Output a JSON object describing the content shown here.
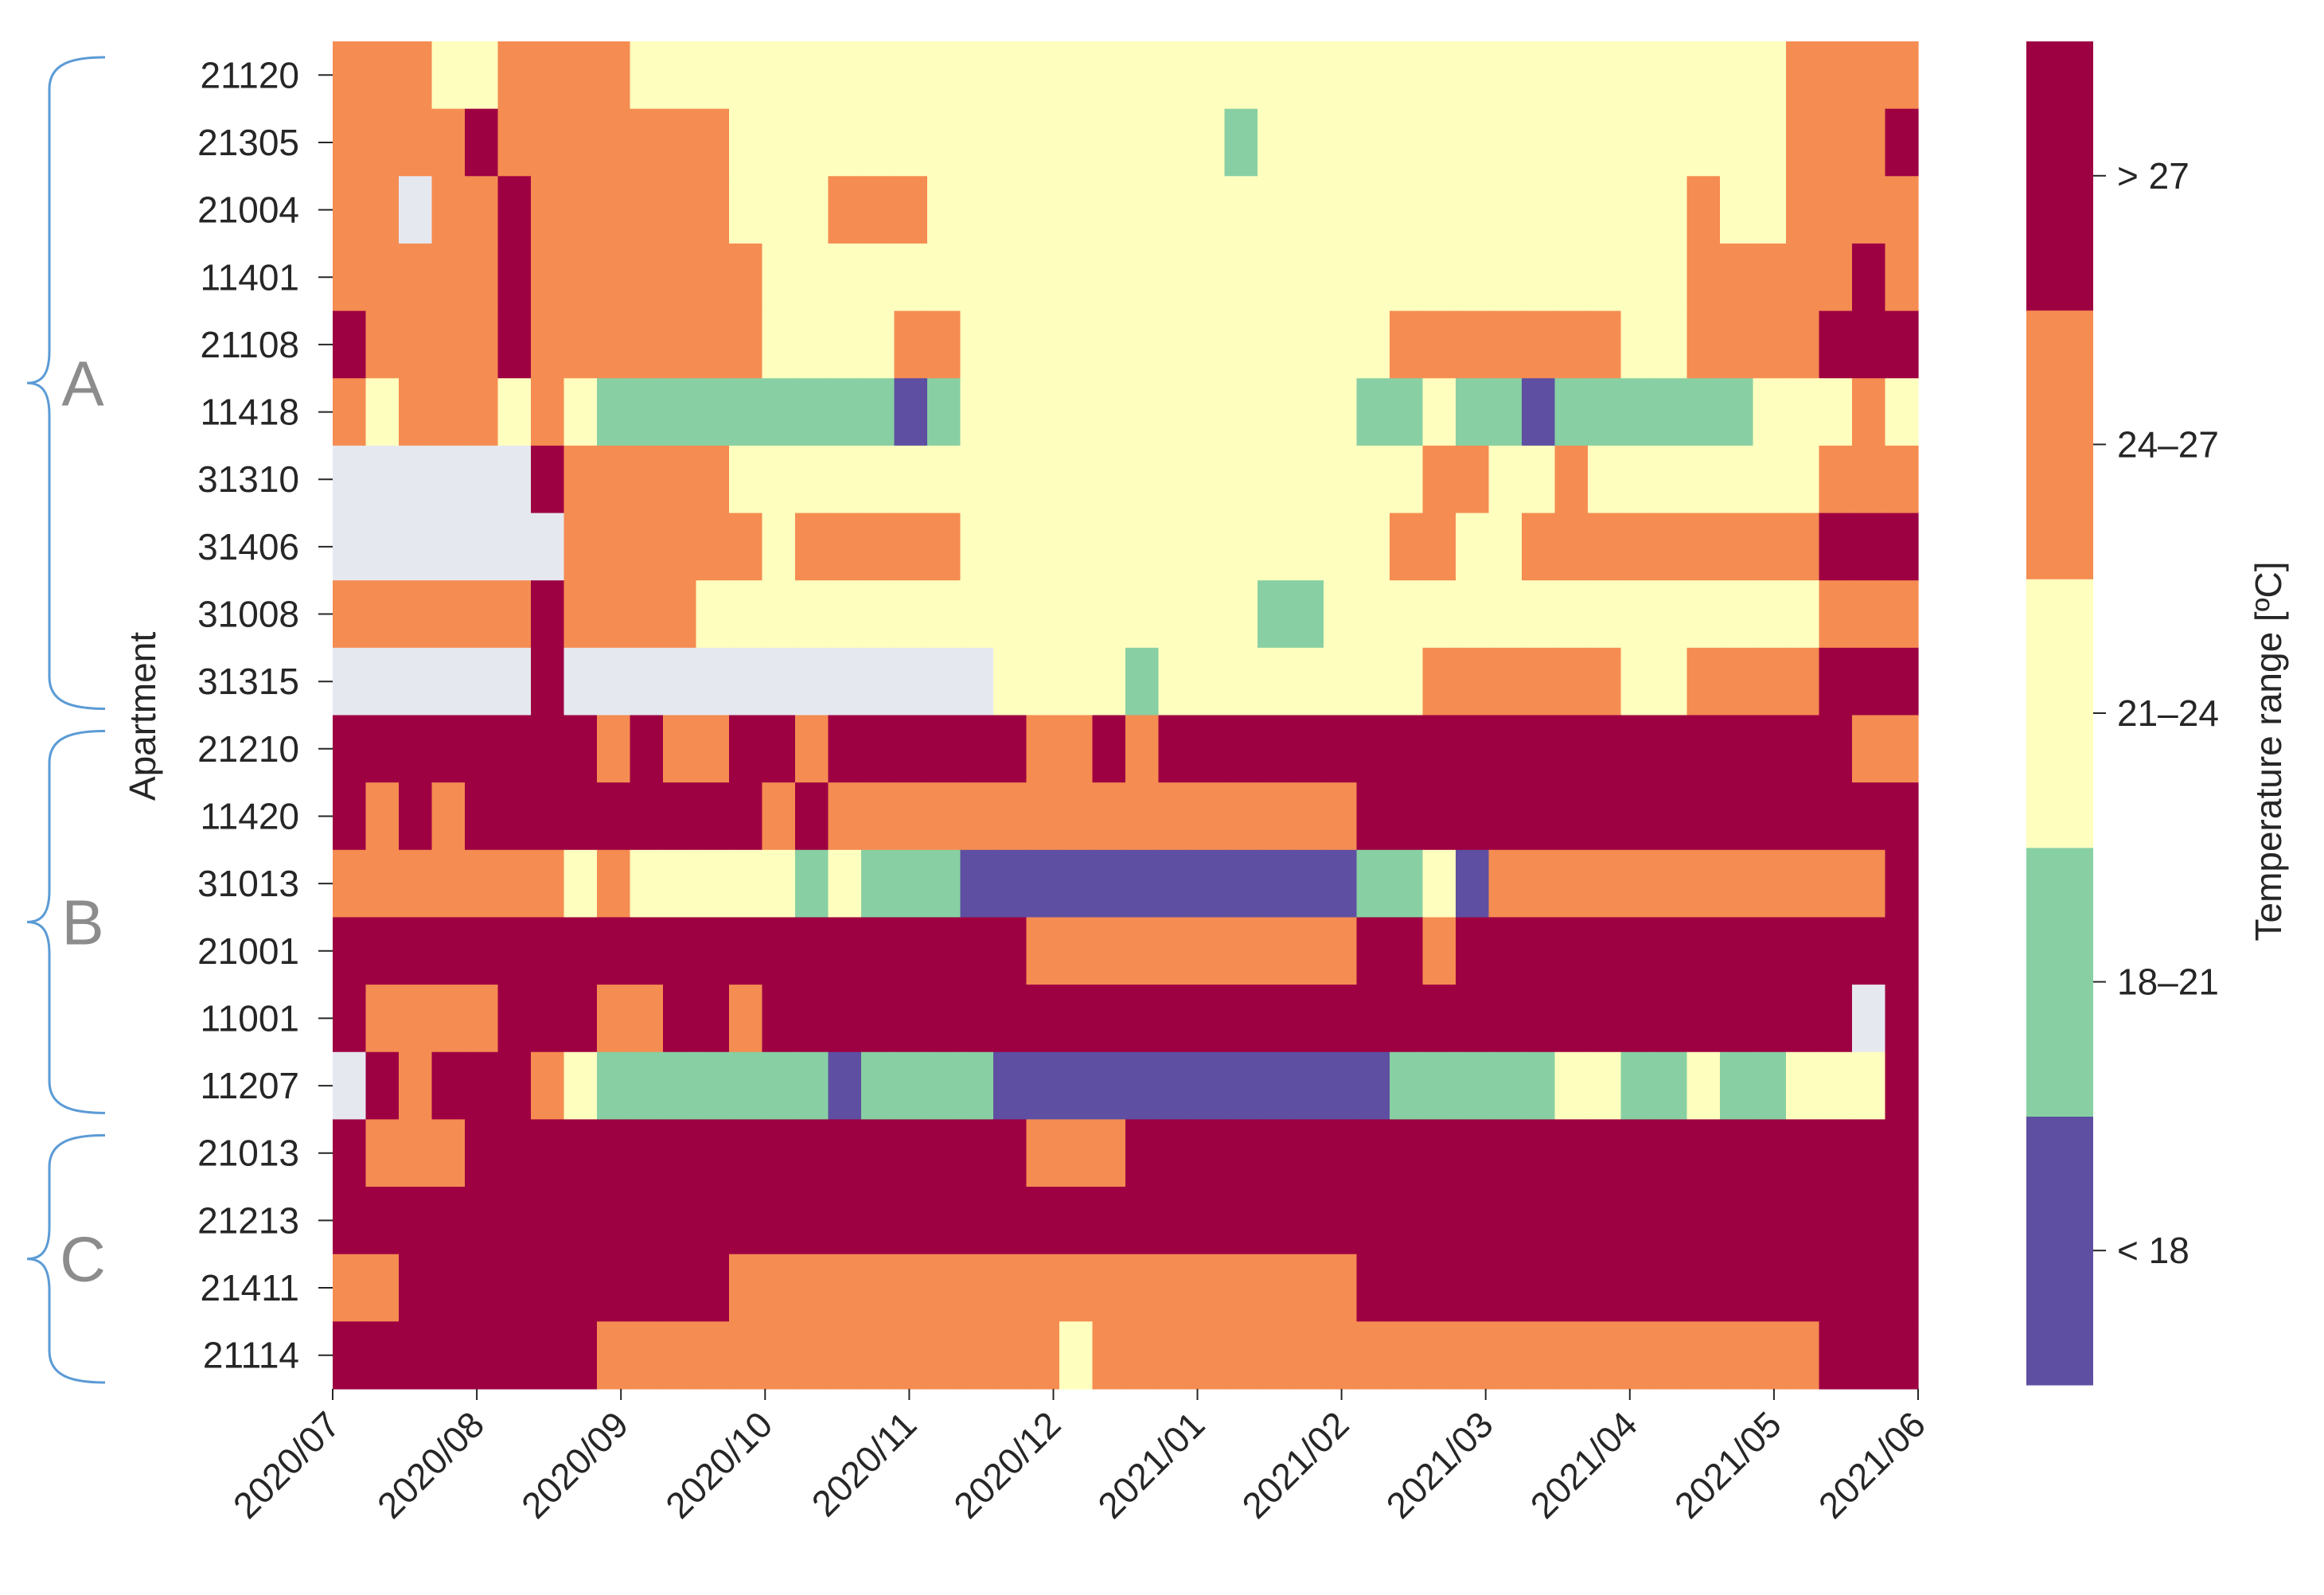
{
  "chart_data": {
    "type": "heatmap",
    "title": "",
    "ylabel": "Apartment",
    "colorbar_label": "Temperature range [ºC]",
    "x_tick_labels": [
      "2020/07",
      "2020/08",
      "2020/09",
      "2020/10",
      "2020/11",
      "2020/12",
      "2021/01",
      "2021/02",
      "2021/03",
      "2021/04",
      "2021/05",
      "2021/06"
    ],
    "rows": [
      "21120",
      "21305",
      "21004",
      "11401",
      "21108",
      "11418",
      "31310",
      "31406",
      "31008",
      "31315",
      "21210",
      "11420",
      "31013",
      "21001",
      "11001",
      "11207",
      "21013",
      "21213",
      "21411",
      "21114"
    ],
    "groups": [
      {
        "name": "A",
        "first_row": 0,
        "last_row": 9
      },
      {
        "name": "B",
        "first_row": 10,
        "last_row": 15
      },
      {
        "name": "C",
        "first_row": 16,
        "last_row": 19
      }
    ],
    "categories": [
      "< 18",
      "18–21",
      "21–24",
      "24–27",
      "> 27"
    ],
    "category_colors": [
      "#5e4fa2",
      "#88d0a3",
      "#fefebf",
      "#f58c52",
      "#9e0142"
    ],
    "missing_color": "#e6e8f0",
    "cells_per_row": 48,
    "cell_category_index": [
      [
        3,
        3,
        3,
        2,
        2,
        3,
        3,
        3,
        3,
        2,
        2,
        2,
        2,
        2,
        2,
        2,
        2,
        2,
        2,
        2,
        2,
        2,
        2,
        2,
        2,
        2,
        2,
        2,
        2,
        2,
        2,
        2,
        2,
        2,
        2,
        2,
        2,
        2,
        2,
        2,
        2,
        2,
        2,
        2,
        3,
        3,
        3,
        3
      ],
      [
        3,
        3,
        3,
        3,
        4,
        3,
        3,
        3,
        3,
        3,
        3,
        3,
        2,
        2,
        2,
        2,
        2,
        2,
        2,
        2,
        2,
        2,
        2,
        2,
        2,
        2,
        2,
        1,
        2,
        2,
        2,
        2,
        2,
        2,
        2,
        2,
        2,
        2,
        2,
        2,
        2,
        2,
        2,
        2,
        3,
        3,
        3,
        4
      ],
      [
        3,
        3,
        -1,
        3,
        3,
        4,
        3,
        3,
        3,
        3,
        3,
        3,
        2,
        2,
        2,
        3,
        3,
        3,
        2,
        2,
        2,
        2,
        2,
        2,
        2,
        2,
        2,
        2,
        2,
        2,
        2,
        2,
        2,
        2,
        2,
        2,
        2,
        2,
        2,
        2,
        2,
        3,
        2,
        2,
        3,
        3,
        3,
        3
      ],
      [
        3,
        3,
        3,
        3,
        3,
        4,
        3,
        3,
        3,
        3,
        3,
        3,
        3,
        2,
        2,
        2,
        2,
        2,
        2,
        2,
        2,
        2,
        2,
        2,
        2,
        2,
        2,
        2,
        2,
        2,
        2,
        2,
        2,
        2,
        2,
        2,
        2,
        2,
        2,
        2,
        2,
        3,
        3,
        3,
        3,
        3,
        4,
        3
      ],
      [
        4,
        3,
        3,
        3,
        3,
        4,
        3,
        3,
        3,
        3,
        3,
        3,
        3,
        2,
        2,
        2,
        2,
        3,
        3,
        2,
        2,
        2,
        2,
        2,
        2,
        2,
        2,
        2,
        2,
        2,
        2,
        2,
        3,
        3,
        3,
        3,
        3,
        3,
        3,
        2,
        2,
        3,
        3,
        3,
        3,
        4,
        4,
        4
      ],
      [
        3,
        2,
        3,
        3,
        3,
        2,
        3,
        2,
        1,
        1,
        1,
        1,
        1,
        1,
        1,
        1,
        1,
        0,
        1,
        2,
        2,
        2,
        2,
        2,
        2,
        2,
        2,
        2,
        2,
        2,
        2,
        1,
        1,
        2,
        1,
        1,
        0,
        1,
        1,
        1,
        1,
        1,
        1,
        2,
        2,
        2,
        3,
        2
      ],
      [
        -1,
        -1,
        -1,
        -1,
        -1,
        -1,
        4,
        3,
        3,
        3,
        3,
        3,
        2,
        2,
        2,
        2,
        2,
        2,
        2,
        2,
        2,
        2,
        2,
        2,
        2,
        2,
        2,
        2,
        2,
        2,
        2,
        2,
        2,
        3,
        3,
        2,
        2,
        3,
        2,
        2,
        2,
        2,
        2,
        2,
        2,
        3,
        3,
        3
      ],
      [
        -1,
        -1,
        -1,
        -1,
        -1,
        -1,
        -1,
        3,
        3,
        3,
        3,
        3,
        3,
        2,
        3,
        3,
        3,
        3,
        3,
        2,
        2,
        2,
        2,
        2,
        2,
        2,
        2,
        2,
        2,
        2,
        2,
        2,
        3,
        3,
        2,
        2,
        3,
        3,
        3,
        3,
        3,
        3,
        3,
        3,
        3,
        4,
        4,
        4
      ],
      [
        3,
        3,
        3,
        3,
        3,
        3,
        4,
        3,
        3,
        3,
        3,
        2,
        2,
        2,
        2,
        2,
        2,
        2,
        2,
        2,
        2,
        2,
        2,
        2,
        2,
        2,
        2,
        2,
        1,
        1,
        2,
        2,
        2,
        2,
        2,
        2,
        2,
        2,
        2,
        2,
        2,
        2,
        2,
        2,
        2,
        3,
        3,
        3
      ],
      [
        -1,
        -1,
        -1,
        -1,
        -1,
        -1,
        4,
        -1,
        -1,
        -1,
        -1,
        -1,
        -1,
        -1,
        -1,
        -1,
        -1,
        -1,
        -1,
        -1,
        2,
        2,
        2,
        2,
        1,
        2,
        2,
        2,
        2,
        2,
        2,
        2,
        2,
        3,
        3,
        3,
        3,
        3,
        3,
        2,
        2,
        3,
        3,
        3,
        3,
        4,
        4,
        4
      ],
      [
        4,
        4,
        4,
        4,
        4,
        4,
        4,
        4,
        3,
        4,
        3,
        3,
        4,
        4,
        3,
        4,
        4,
        4,
        4,
        4,
        4,
        3,
        3,
        4,
        3,
        4,
        4,
        4,
        4,
        4,
        4,
        4,
        4,
        4,
        4,
        4,
        4,
        4,
        4,
        4,
        4,
        4,
        4,
        4,
        4,
        4,
        3,
        3
      ],
      [
        4,
        3,
        4,
        3,
        4,
        4,
        4,
        4,
        4,
        4,
        4,
        4,
        4,
        3,
        4,
        3,
        3,
        3,
        3,
        3,
        3,
        3,
        3,
        3,
        3,
        3,
        3,
        3,
        3,
        3,
        3,
        4,
        4,
        4,
        4,
        4,
        4,
        4,
        4,
        4,
        4,
        4,
        4,
        4,
        4,
        4,
        4,
        4
      ],
      [
        3,
        3,
        3,
        3,
        3,
        3,
        3,
        2,
        3,
        2,
        2,
        2,
        2,
        2,
        1,
        2,
        1,
        1,
        1,
        0,
        0,
        0,
        0,
        0,
        0,
        0,
        0,
        0,
        0,
        0,
        0,
        1,
        1,
        2,
        0,
        3,
        3,
        3,
        3,
        3,
        3,
        3,
        3,
        3,
        3,
        3,
        3,
        4
      ],
      [
        4,
        4,
        4,
        4,
        4,
        4,
        4,
        4,
        4,
        4,
        4,
        4,
        4,
        4,
        4,
        4,
        4,
        4,
        4,
        4,
        4,
        3,
        3,
        3,
        3,
        3,
        3,
        3,
        3,
        3,
        3,
        4,
        4,
        3,
        4,
        4,
        4,
        4,
        4,
        4,
        4,
        4,
        4,
        4,
        4,
        4,
        4,
        4
      ],
      [
        4,
        3,
        3,
        3,
        3,
        4,
        4,
        4,
        3,
        3,
        4,
        4,
        3,
        4,
        4,
        4,
        4,
        4,
        4,
        4,
        4,
        4,
        4,
        4,
        4,
        4,
        4,
        4,
        4,
        4,
        4,
        4,
        4,
        4,
        4,
        4,
        4,
        4,
        4,
        4,
        4,
        4,
        4,
        4,
        4,
        4,
        -1,
        4
      ],
      [
        -1,
        4,
        3,
        4,
        4,
        4,
        3,
        2,
        1,
        1,
        1,
        1,
        1,
        1,
        1,
        0,
        1,
        1,
        1,
        1,
        0,
        0,
        0,
        0,
        0,
        0,
        0,
        0,
        0,
        0,
        0,
        0,
        1,
        1,
        1,
        1,
        1,
        2,
        2,
        1,
        1,
        2,
        1,
        1,
        2,
        2,
        2,
        4
      ],
      [
        4,
        3,
        3,
        3,
        4,
        4,
        4,
        4,
        4,
        4,
        4,
        4,
        4,
        4,
        4,
        4,
        4,
        4,
        4,
        4,
        4,
        3,
        3,
        3,
        4,
        4,
        4,
        4,
        4,
        4,
        4,
        4,
        4,
        4,
        4,
        4,
        4,
        4,
        4,
        4,
        4,
        4,
        4,
        4,
        4,
        4,
        4,
        4
      ],
      [
        4,
        4,
        4,
        4,
        4,
        4,
        4,
        4,
        4,
        4,
        4,
        4,
        4,
        4,
        4,
        4,
        4,
        4,
        4,
        4,
        4,
        4,
        4,
        4,
        4,
        4,
        4,
        4,
        4,
        4,
        4,
        4,
        4,
        4,
        4,
        4,
        4,
        4,
        4,
        4,
        4,
        4,
        4,
        4,
        4,
        4,
        4,
        4
      ],
      [
        3,
        3,
        4,
        4,
        4,
        4,
        4,
        4,
        4,
        4,
        4,
        4,
        3,
        3,
        3,
        3,
        3,
        3,
        3,
        3,
        3,
        3,
        3,
        3,
        3,
        3,
        3,
        3,
        3,
        3,
        3,
        4,
        4,
        4,
        4,
        4,
        4,
        4,
        4,
        4,
        4,
        4,
        4,
        4,
        4,
        4,
        4,
        4
      ],
      [
        4,
        4,
        4,
        4,
        4,
        4,
        4,
        4,
        3,
        3,
        3,
        3,
        3,
        3,
        3,
        3,
        3,
        3,
        3,
        3,
        3,
        3,
        2,
        3,
        3,
        3,
        3,
        3,
        3,
        3,
        3,
        3,
        3,
        3,
        3,
        3,
        3,
        3,
        3,
        3,
        3,
        3,
        3,
        3,
        3,
        4,
        4,
        4
      ]
    ]
  }
}
